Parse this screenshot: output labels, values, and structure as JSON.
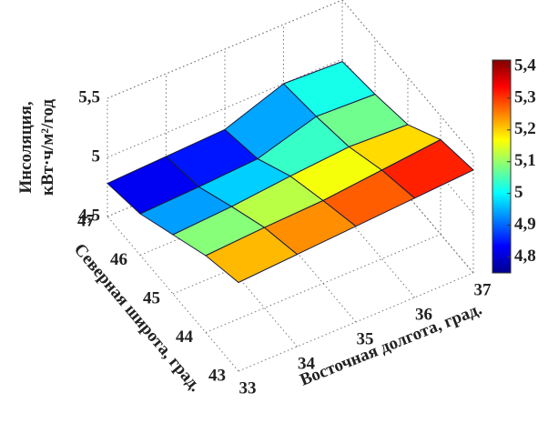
{
  "chart_data": {
    "type": "surface3d",
    "zlabel": [
      "Инсоляция,",
      "кВт·ч/м²/год"
    ],
    "xlabel": "Восточная долгота, град.",
    "ylabel": "Северная широта, град.",
    "x": [
      33,
      34,
      35,
      36,
      37
    ],
    "y": [
      43,
      44,
      45,
      46,
      47
    ],
    "z": [
      [
        5.25,
        5.28,
        5.31,
        5.34,
        5.37
      ],
      [
        5.15,
        5.18,
        5.2,
        5.25,
        5.3
      ],
      [
        5.0,
        5.03,
        5.08,
        5.12,
        5.1
      ],
      [
        4.85,
        4.87,
        4.9,
        5.05,
        5.03
      ],
      [
        4.78,
        4.8,
        4.82,
        5.0,
        4.98
      ]
    ],
    "xlim": [
      33,
      37
    ],
    "ylim": [
      43,
      47
    ],
    "zlim": [
      4.5,
      5.5
    ],
    "xticks": [
      33,
      34,
      35,
      36,
      37
    ],
    "yticks": [
      43,
      44,
      45,
      46,
      47
    ],
    "zticks": [
      {
        "value": 4.5,
        "label": "4,5"
      },
      5,
      {
        "value": 5.5,
        "label": "5,5"
      }
    ],
    "colormap": "jet",
    "clim": [
      4.75,
      5.42
    ],
    "cticks": [
      {
        "value": 4.8,
        "label": "4,8"
      },
      {
        "value": 4.9,
        "label": "4,9"
      },
      5,
      {
        "value": 5.1,
        "label": "5,1"
      },
      {
        "value": 5.2,
        "label": "5,2"
      },
      {
        "value": 5.3,
        "label": "5,3"
      },
      {
        "value": 5.4,
        "label": "5,4"
      }
    ],
    "grid": true
  }
}
